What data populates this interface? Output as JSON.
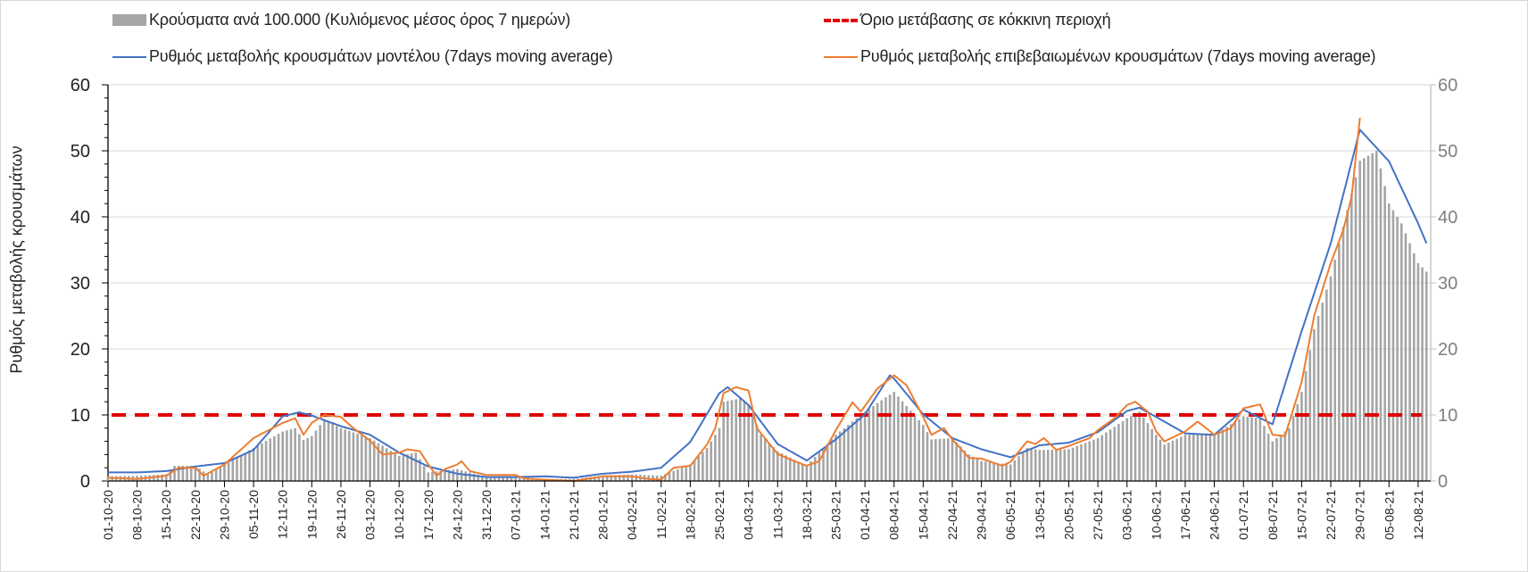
{
  "chart_data": {
    "type": "bar+line",
    "ylabel": "Ρυθμός μεταβολής κρουσμάτων",
    "ylim": [
      0,
      60
    ],
    "yticks": [
      "0",
      "10",
      "20",
      "30",
      "40",
      "50",
      "60"
    ],
    "y2ticks": [
      "0",
      "10",
      "20",
      "30",
      "40",
      "50",
      "60"
    ],
    "x_start": "01-10-20",
    "x_end": "14-08-21",
    "xticks": [
      "01-10-20",
      "08-10-20",
      "15-10-20",
      "22-10-20",
      "29-10-20",
      "05-11-20",
      "12-11-20",
      "19-11-20",
      "26-11-20",
      "03-12-20",
      "10-12-20",
      "17-12-20",
      "24-12-20",
      "31-12-20",
      "07-01-21",
      "14-01-21",
      "21-01-21",
      "28-01-21",
      "04-02-21",
      "11-02-21",
      "18-02-21",
      "25-02-21",
      "04-03-21",
      "11-03-21",
      "18-03-21",
      "25-03-21",
      "01-04-21",
      "08-04-21",
      "15-04-21",
      "22-04-21",
      "29-04-21",
      "06-05-21",
      "13-05-21",
      "20-05-21",
      "27-05-21",
      "03-06-21",
      "10-06-21",
      "17-06-21",
      "24-06-21",
      "01-07-21",
      "08-07-21",
      "15-07-21",
      "22-07-21",
      "29-07-21",
      "05-08-21",
      "12-08-21"
    ],
    "grid": true,
    "legend_position": "top",
    "legend": {
      "bars": "Κρούσματα ανά 100.000 (Κυλιόμενος μέσος όρος 7 ημερών)",
      "threshold": "Όριο μετάβασης σε κόκκινη περιοχή",
      "model": "Ρυθμός μεταβολής κρουσμάτων μοντέλου (7days moving average)",
      "confirmed": "Ρυθμός μεταβολής επιβεβαιωμένων κρουσμάτων (7days moving average)"
    },
    "colors": {
      "bars": "#a5a5a5",
      "threshold": "#e00000",
      "model": "#4472c4",
      "confirmed": "#ed7d31"
    },
    "threshold": 10,
    "series": [
      {
        "name": "bars",
        "type": "bar",
        "points": [
          [
            "01-10-20",
            0.7
          ],
          [
            "08-10-20",
            0.8
          ],
          [
            "15-10-20",
            1.0
          ],
          [
            "17-10-20",
            2.3
          ],
          [
            "22-10-20",
            2.3
          ],
          [
            "25-10-20",
            1.0
          ],
          [
            "29-10-20",
            2.5
          ],
          [
            "05-11-20",
            5
          ],
          [
            "12-11-20",
            7.5
          ],
          [
            "15-11-20",
            8
          ],
          [
            "17-11-20",
            6.2
          ],
          [
            "19-11-20",
            6.8
          ],
          [
            "22-11-20",
            9.3
          ],
          [
            "26-11-20",
            8
          ],
          [
            "03-12-20",
            6.5
          ],
          [
            "10-12-20",
            3.8
          ],
          [
            "14-12-20",
            4.3
          ],
          [
            "17-12-20",
            1.3
          ],
          [
            "24-12-20",
            1.8
          ],
          [
            "31-12-20",
            0.6
          ],
          [
            "07-01-21",
            0.5
          ],
          [
            "14-01-21",
            0.3
          ],
          [
            "21-01-21",
            0.3
          ],
          [
            "28-01-21",
            0.8
          ],
          [
            "04-02-21",
            1.0
          ],
          [
            "11-02-21",
            0.8
          ],
          [
            "18-02-21",
            2.5
          ],
          [
            "22-02-21",
            5
          ],
          [
            "25-02-21",
            8
          ],
          [
            "26-02-21",
            12
          ],
          [
            "02-03-21",
            12.5
          ],
          [
            "04-03-21",
            11.5
          ],
          [
            "07-03-21",
            7
          ],
          [
            "11-03-21",
            4.5
          ],
          [
            "18-03-21",
            2.3
          ],
          [
            "25-03-21",
            7
          ],
          [
            "01-04-21",
            10.5
          ],
          [
            "08-04-21",
            13.5
          ],
          [
            "15-04-21",
            8.5
          ],
          [
            "17-04-21",
            6.3
          ],
          [
            "22-04-21",
            6.5
          ],
          [
            "26-04-21",
            4
          ],
          [
            "29-04-21",
            3
          ],
          [
            "06-05-21",
            2.5
          ],
          [
            "10-05-21",
            5
          ],
          [
            "13-05-21",
            4.7
          ],
          [
            "20-05-21",
            4.8
          ],
          [
            "27-05-21",
            6.5
          ],
          [
            "03-06-21",
            9.5
          ],
          [
            "06-06-21",
            10.5
          ],
          [
            "10-06-21",
            7
          ],
          [
            "12-06-21",
            5.5
          ],
          [
            "17-06-21",
            7
          ],
          [
            "24-06-21",
            7
          ],
          [
            "01-07-21",
            9.8
          ],
          [
            "05-07-21",
            9.5
          ],
          [
            "08-07-21",
            6
          ],
          [
            "12-07-21",
            8
          ],
          [
            "15-07-21",
            13.5
          ],
          [
            "18-07-21",
            23
          ],
          [
            "22-07-21",
            31
          ],
          [
            "26-07-21",
            41
          ],
          [
            "29-07-21",
            48.5
          ],
          [
            "02-08-21",
            50
          ],
          [
            "05-08-21",
            42
          ],
          [
            "08-08-21",
            39
          ],
          [
            "12-08-21",
            33
          ],
          [
            "14-08-21",
            31.7
          ]
        ]
      },
      {
        "name": "model",
        "type": "line",
        "points": [
          [
            "01-10-20",
            1.3
          ],
          [
            "08-10-20",
            1.3
          ],
          [
            "15-10-20",
            1.5
          ],
          [
            "22-10-20",
            2.2
          ],
          [
            "29-10-20",
            2.7
          ],
          [
            "05-11-20",
            4.7
          ],
          [
            "12-11-20",
            9.8
          ],
          [
            "16-11-20",
            10.4
          ],
          [
            "19-11-20",
            9.9
          ],
          [
            "26-11-20",
            8.3
          ],
          [
            "03-12-20",
            7.0
          ],
          [
            "10-12-20",
            4.3
          ],
          [
            "17-12-20",
            2.2
          ],
          [
            "24-12-20",
            1.1
          ],
          [
            "31-12-20",
            0.6
          ],
          [
            "07-01-21",
            0.6
          ],
          [
            "14-01-21",
            0.7
          ],
          [
            "21-01-21",
            0.5
          ],
          [
            "28-01-21",
            1.1
          ],
          [
            "04-02-21",
            1.4
          ],
          [
            "11-02-21",
            2.0
          ],
          [
            "18-02-21",
            5.9
          ],
          [
            "25-02-21",
            13.3
          ],
          [
            "27-02-21",
            14.2
          ],
          [
            "04-03-21",
            11.5
          ],
          [
            "11-03-21",
            5.6
          ],
          [
            "18-03-21",
            3.1
          ],
          [
            "25-03-21",
            6.3
          ],
          [
            "01-04-21",
            10.1
          ],
          [
            "07-04-21",
            16.0
          ],
          [
            "08-04-21",
            15.5
          ],
          [
            "15-04-21",
            10.1
          ],
          [
            "22-04-21",
            6.5
          ],
          [
            "29-04-21",
            4.8
          ],
          [
            "06-05-21",
            3.6
          ],
          [
            "13-05-21",
            5.4
          ],
          [
            "20-05-21",
            5.8
          ],
          [
            "27-05-21",
            7.4
          ],
          [
            "03-06-21",
            10.6
          ],
          [
            "06-06-21",
            11.1
          ],
          [
            "10-06-21",
            9.7
          ],
          [
            "17-06-21",
            7.2
          ],
          [
            "24-06-21",
            7.0
          ],
          [
            "01-07-21",
            10.8
          ],
          [
            "08-07-21",
            8.6
          ],
          [
            "15-07-21",
            22.7
          ],
          [
            "22-07-21",
            36
          ],
          [
            "29-07-21",
            53.2
          ],
          [
            "05-08-21",
            48.4
          ],
          [
            "12-08-21",
            39
          ],
          [
            "14-08-21",
            36
          ]
        ]
      },
      {
        "name": "confirmed",
        "type": "line",
        "points": [
          [
            "01-10-20",
            0.5
          ],
          [
            "08-10-20",
            0.3
          ],
          [
            "15-10-20",
            0.8
          ],
          [
            "18-10-20",
            2.0
          ],
          [
            "22-10-20",
            2.0
          ],
          [
            "24-10-20",
            0.8
          ],
          [
            "29-10-20",
            2.5
          ],
          [
            "05-11-20",
            6.5
          ],
          [
            "12-11-20",
            8.8
          ],
          [
            "15-11-20",
            9.5
          ],
          [
            "17-11-20",
            7.0
          ],
          [
            "19-11-20",
            8.8
          ],
          [
            "22-11-20",
            10.0
          ],
          [
            "26-11-20",
            9.7
          ],
          [
            "29-11-20",
            8.0
          ],
          [
            "03-12-20",
            6.1
          ],
          [
            "06-12-20",
            4.0
          ],
          [
            "10-12-20",
            4.3
          ],
          [
            "12-12-20",
            4.8
          ],
          [
            "15-12-20",
            4.5
          ],
          [
            "17-12-20",
            2.5
          ],
          [
            "19-12-20",
            0.8
          ],
          [
            "21-12-20",
            1.8
          ],
          [
            "24-12-20",
            2.5
          ],
          [
            "25-12-20",
            3.0
          ],
          [
            "27-12-20",
            1.5
          ],
          [
            "31-12-20",
            0.9
          ],
          [
            "07-01-21",
            0.9
          ],
          [
            "09-01-21",
            0.4
          ],
          [
            "14-01-21",
            0.2
          ],
          [
            "21-01-21",
            0
          ],
          [
            "28-01-21",
            0.7
          ],
          [
            "04-02-21",
            0.7
          ],
          [
            "08-02-21",
            0.3
          ],
          [
            "11-02-21",
            0.2
          ],
          [
            "14-02-21",
            2.0
          ],
          [
            "18-02-21",
            2.3
          ],
          [
            "22-02-21",
            5.5
          ],
          [
            "24-02-21",
            8
          ],
          [
            "26-02-21",
            13.3
          ],
          [
            "01-03-21",
            14.2
          ],
          [
            "04-03-21",
            13.7
          ],
          [
            "06-03-21",
            8
          ],
          [
            "11-03-21",
            4.1
          ],
          [
            "15-03-21",
            3
          ],
          [
            "18-03-21",
            2.3
          ],
          [
            "21-03-21",
            3.0
          ],
          [
            "25-03-21",
            7.7
          ],
          [
            "29-03-21",
            11.9
          ],
          [
            "31-03-21",
            10.5
          ],
          [
            "04-04-21",
            14
          ],
          [
            "08-04-21",
            16.0
          ],
          [
            "11-04-21",
            14.5
          ],
          [
            "15-04-21",
            9.7
          ],
          [
            "17-04-21",
            7.0
          ],
          [
            "20-04-21",
            8.0
          ],
          [
            "22-04-21",
            6.3
          ],
          [
            "26-04-21",
            3.5
          ],
          [
            "29-04-21",
            3.4
          ],
          [
            "04-05-21",
            2.3
          ],
          [
            "06-05-21",
            2.9
          ],
          [
            "10-05-21",
            6.0
          ],
          [
            "12-05-21",
            5.6
          ],
          [
            "14-05-21",
            6.5
          ],
          [
            "17-05-21",
            4.7
          ],
          [
            "20-05-21",
            5.3
          ],
          [
            "25-05-21",
            6.5
          ],
          [
            "27-05-21",
            7.7
          ],
          [
            "31-05-21",
            9.5
          ],
          [
            "03-06-21",
            11.5
          ],
          [
            "05-06-21",
            12.0
          ],
          [
            "08-06-21",
            10.5
          ],
          [
            "10-06-21",
            7.5
          ],
          [
            "12-06-21",
            6.0
          ],
          [
            "17-06-21",
            7.5
          ],
          [
            "20-06-21",
            9.0
          ],
          [
            "24-06-21",
            7.0
          ],
          [
            "28-06-21",
            8.0
          ],
          [
            "01-07-21",
            11.0
          ],
          [
            "05-07-21",
            11.6
          ],
          [
            "08-07-21",
            7.0
          ],
          [
            "11-07-21",
            6.8
          ],
          [
            "15-07-21",
            15
          ],
          [
            "18-07-21",
            25
          ],
          [
            "22-07-21",
            33
          ],
          [
            "25-07-21",
            38
          ],
          [
            "27-07-21",
            43
          ],
          [
            "29-07-21",
            55
          ]
        ]
      }
    ]
  }
}
